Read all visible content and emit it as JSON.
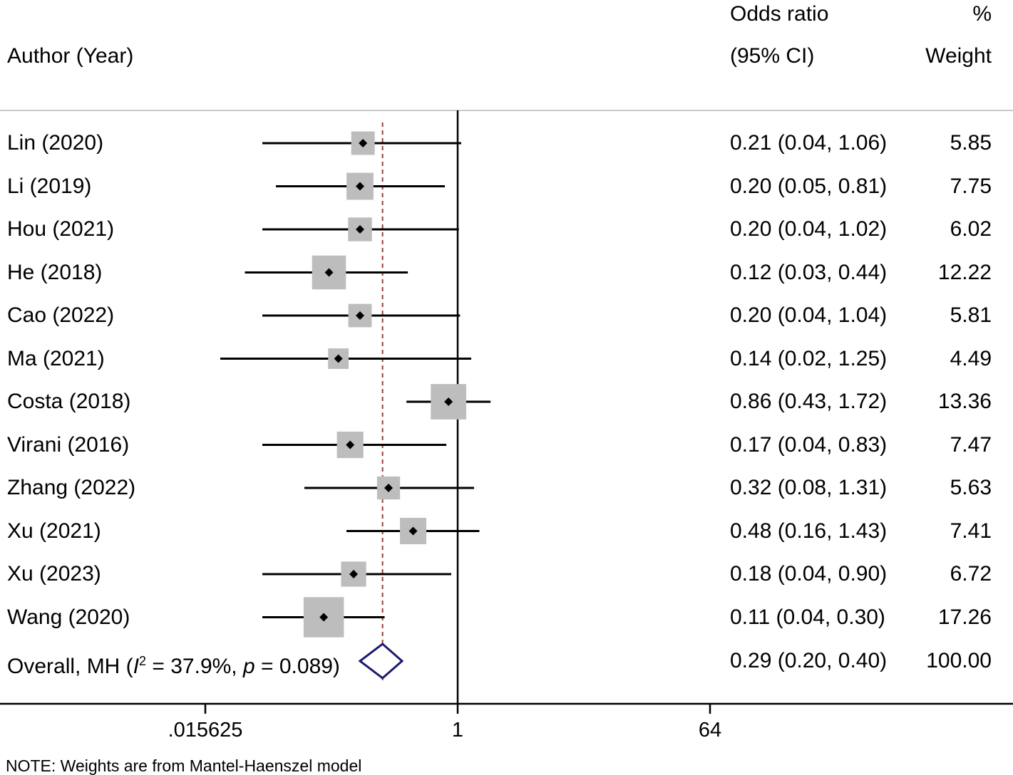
{
  "header": {
    "study_col": "Author (Year)",
    "effect_col_line1": "Odds ratio",
    "effect_col_line2": "(95% CI)",
    "weight_col_line1": "%",
    "weight_col_line2": "Weight"
  },
  "overall_label": {
    "prefix": "Overall, MH (",
    "i_letter": "I",
    "sup": "2",
    "mid": " = 37.9%, ",
    "p_letter": "p",
    "suffix": " = 0.089)"
  },
  "note": "NOTE: Weights are from Mantel-Haenszel model",
  "axis": {
    "ticks": [
      {
        "value": 0.015625,
        "label": ".015625"
      },
      {
        "value": 1,
        "label": "1"
      },
      {
        "value": 64,
        "label": "64"
      }
    ],
    "scale": "log"
  },
  "colors": {
    "ci_line": "#000000",
    "weight_box": "#bdbdbd",
    "point": "#000000",
    "overall_diamond": "#1a1a6e",
    "reference_line": "#9b3a3a",
    "header_rule": "#c8c8c8"
  },
  "chart_data": {
    "type": "forest",
    "measure": "Odds ratio",
    "scale": "log",
    "reference_value": 1,
    "overall_line_value": 0.29,
    "studies": [
      {
        "label": "Lin (2020)",
        "or": 0.21,
        "lower": 0.04,
        "upper": 1.06,
        "ci_text": "0.21 (0.04, 1.06)",
        "weight": 5.85,
        "weight_text": "5.85"
      },
      {
        "label": "Li (2019)",
        "or": 0.2,
        "lower": 0.05,
        "upper": 0.81,
        "ci_text": "0.20 (0.05, 0.81)",
        "weight": 7.75,
        "weight_text": "7.75"
      },
      {
        "label": "Hou (2021)",
        "or": 0.2,
        "lower": 0.04,
        "upper": 1.02,
        "ci_text": "0.20 (0.04, 1.02)",
        "weight": 6.02,
        "weight_text": "6.02"
      },
      {
        "label": "He (2018)",
        "or": 0.12,
        "lower": 0.03,
        "upper": 0.44,
        "ci_text": "0.12 (0.03, 0.44)",
        "weight": 12.22,
        "weight_text": "12.22"
      },
      {
        "label": "Cao (2022)",
        "or": 0.2,
        "lower": 0.04,
        "upper": 1.04,
        "ci_text": "0.20 (0.04, 1.04)",
        "weight": 5.81,
        "weight_text": "5.81"
      },
      {
        "label": "Ma (2021)",
        "or": 0.14,
        "lower": 0.02,
        "upper": 1.25,
        "ci_text": "0.14 (0.02, 1.25)",
        "weight": 4.49,
        "weight_text": "4.49"
      },
      {
        "label": "Costa (2018)",
        "or": 0.86,
        "lower": 0.43,
        "upper": 1.72,
        "ci_text": "0.86 (0.43, 1.72)",
        "weight": 13.36,
        "weight_text": "13.36"
      },
      {
        "label": "Virani (2016)",
        "or": 0.17,
        "lower": 0.04,
        "upper": 0.83,
        "ci_text": "0.17 (0.04, 0.83)",
        "weight": 7.47,
        "weight_text": "7.47"
      },
      {
        "label": "Zhang (2022)",
        "or": 0.32,
        "lower": 0.08,
        "upper": 1.31,
        "ci_text": "0.32 (0.08, 1.31)",
        "weight": 5.63,
        "weight_text": "5.63"
      },
      {
        "label": "Xu (2021)",
        "or": 0.48,
        "lower": 0.16,
        "upper": 1.43,
        "ci_text": "0.48 (0.16, 1.43)",
        "weight": 7.41,
        "weight_text": "7.41"
      },
      {
        "label": "Xu (2023)",
        "or": 0.18,
        "lower": 0.04,
        "upper": 0.9,
        "ci_text": "0.18 (0.04, 0.90)",
        "weight": 6.72,
        "weight_text": "6.72"
      },
      {
        "label": "Wang (2020)",
        "or": 0.11,
        "lower": 0.04,
        "upper": 0.3,
        "ci_text": "0.11 (0.04, 0.30)",
        "weight": 17.26,
        "weight_text": "17.26"
      }
    ],
    "overall": {
      "or": 0.29,
      "lower": 0.2,
      "upper": 0.4,
      "ci_text": "0.29 (0.20, 0.40)",
      "weight": 100.0,
      "weight_text": "100.00"
    }
  }
}
